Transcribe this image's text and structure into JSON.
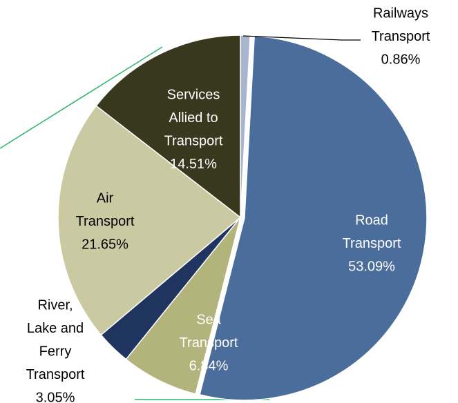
{
  "chart_data": {
    "type": "pie",
    "categories": [
      "Railways\nTransport",
      "Road\nTransport",
      "Sea\nTransport",
      "River,\nLake and\nFerry\nTransport",
      "Air\nTransport",
      "Services\nAllied to\nTransport"
    ],
    "values": [
      0.86,
      53.09,
      6.84,
      3.05,
      21.65,
      14.51
    ],
    "value_labels": [
      "0.86%",
      "53.09%",
      "6.84%",
      "3.05%",
      "21.65%",
      "14.51%"
    ],
    "colors": [
      "#a7b6cc",
      "#4a6d9c",
      "#b3b37c",
      "#1f3560",
      "#cbc9a2",
      "#38381f"
    ]
  }
}
